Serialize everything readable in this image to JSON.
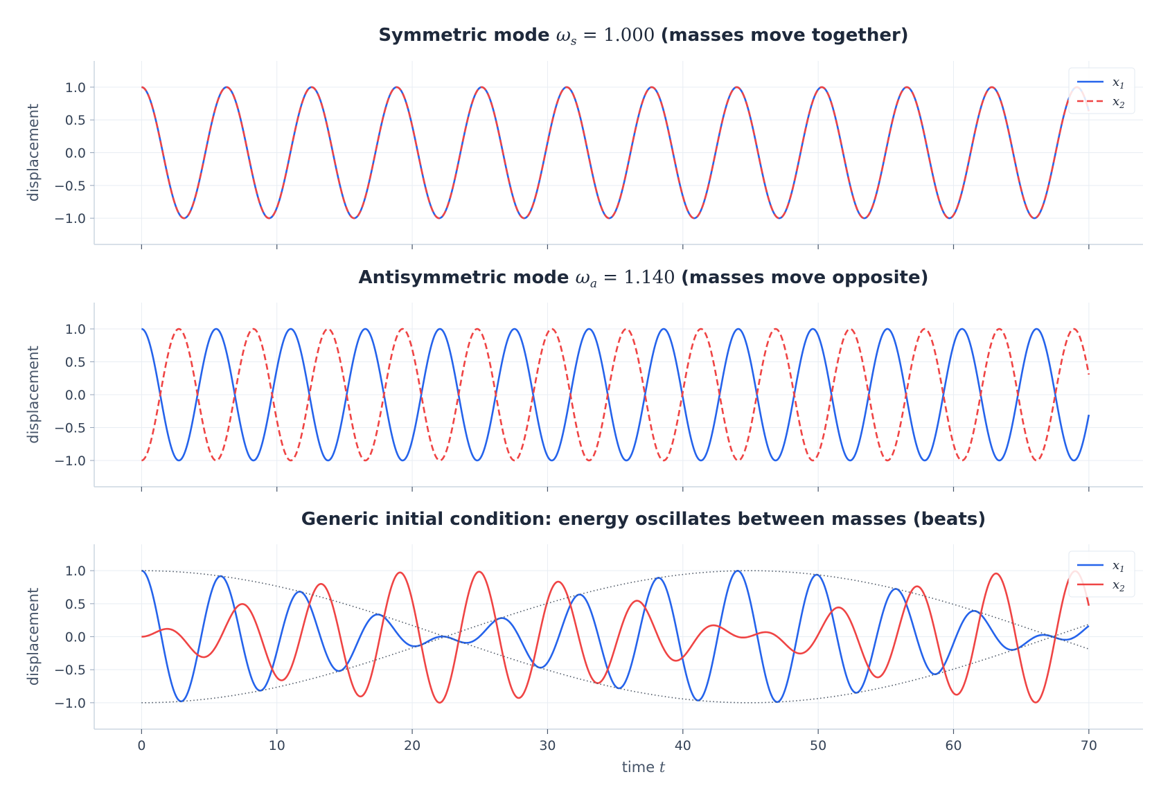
{
  "chart_data": [
    {
      "type": "line",
      "title": "Symmetric mode  ωs = 1.000  (masses move together)",
      "title_parts": {
        "lead": "Symmetric mode",
        "omega": "ω",
        "sub": "s",
        "eq": " = 1.000",
        "tail": "(masses move together)"
      },
      "ylabel": "displacement",
      "xlim": [
        -3.5,
        74
      ],
      "ylim": [
        -1.4,
        1.4
      ],
      "yticks": [
        "1.0",
        "0.5",
        "0.0",
        "−0.5",
        "−1.0"
      ],
      "ytick_values": [
        1.0,
        0.5,
        0.0,
        -0.5,
        -1.0
      ],
      "grid": true,
      "legend": "top-right",
      "legend_entries": [
        {
          "label": "x",
          "sub": "1",
          "color": "#2563eb",
          "style": "solid"
        },
        {
          "label": "x",
          "sub": "2",
          "color": "#ef4444",
          "style": "dashed"
        }
      ],
      "series": [
        {
          "name": "x1",
          "formula": "x1(t) = cos(ωs·t)",
          "omega": 1.0,
          "color": "#2563eb",
          "style": "solid",
          "x_range": [
            0,
            70
          ]
        },
        {
          "name": "x2",
          "formula": "x2(t) = cos(ωs·t)",
          "omega": 1.0,
          "color": "#ef4444",
          "style": "dashed",
          "x_range": [
            0,
            70
          ]
        }
      ]
    },
    {
      "type": "line",
      "title": "Antisymmetric mode  ωa = 1.140  (masses move opposite)",
      "title_parts": {
        "lead": "Antisymmetric mode",
        "omega": "ω",
        "sub": "a",
        "eq": " = 1.140",
        "tail": "(masses move opposite)"
      },
      "ylabel": "displacement",
      "xlim": [
        -3.5,
        74
      ],
      "ylim": [
        -1.4,
        1.4
      ],
      "yticks": [
        "1.0",
        "0.5",
        "0.0",
        "−0.5",
        "−1.0"
      ],
      "ytick_values": [
        1.0,
        0.5,
        0.0,
        -0.5,
        -1.0
      ],
      "grid": true,
      "series": [
        {
          "name": "x1",
          "formula": "x1(t) = cos(ωa·t)",
          "omega": 1.14,
          "color": "#2563eb",
          "style": "solid",
          "x_range": [
            0,
            70
          ]
        },
        {
          "name": "x2",
          "formula": "x2(t) = −cos(ωa·t)",
          "omega": 1.14,
          "color": "#ef4444",
          "style": "dashed",
          "x_range": [
            0,
            70
          ]
        }
      ]
    },
    {
      "type": "line",
      "title": "Generic initial condition: energy oscillates between masses (beats)",
      "ylabel": "displacement",
      "xlabel": "time t",
      "xlabel_parts": {
        "text": "time ",
        "var": "t"
      },
      "xlim": [
        -3.5,
        74
      ],
      "ylim": [
        -1.4,
        1.4
      ],
      "xticks": [
        "0",
        "10",
        "20",
        "30",
        "40",
        "50",
        "60",
        "70"
      ],
      "xtick_values": [
        0,
        10,
        20,
        30,
        40,
        50,
        60,
        70
      ],
      "yticks": [
        "1.0",
        "0.5",
        "0.0",
        "−0.5",
        "−1.0"
      ],
      "ytick_values": [
        1.0,
        0.5,
        0.0,
        -0.5,
        -1.0
      ],
      "grid": true,
      "legend": "top-right",
      "legend_entries": [
        {
          "label": "x",
          "sub": "1",
          "color": "#2563eb",
          "style": "solid"
        },
        {
          "label": "x",
          "sub": "2",
          "color": "#ef4444",
          "style": "solid"
        }
      ],
      "series": [
        {
          "name": "x1",
          "formula": "x1(t) = ½[cos(ωs·t) + cos(ωa·t)]",
          "omega_s": 1.0,
          "omega_a": 1.14,
          "color": "#2563eb",
          "style": "solid",
          "x_range": [
            0,
            70
          ]
        },
        {
          "name": "x2",
          "formula": "x2(t) = ½[cos(ωs·t) − cos(ωa·t)]",
          "omega_s": 1.0,
          "omega_a": 1.14,
          "color": "#ef4444",
          "style": "solid",
          "x_range": [
            0,
            70
          ]
        },
        {
          "name": "envelope",
          "formula": "±cos((ωa−ωs)·t/2)",
          "omega_s": 1.0,
          "omega_a": 1.14,
          "color": "#4b5563",
          "style": "dotted",
          "x_range": [
            0,
            70
          ]
        }
      ]
    }
  ]
}
